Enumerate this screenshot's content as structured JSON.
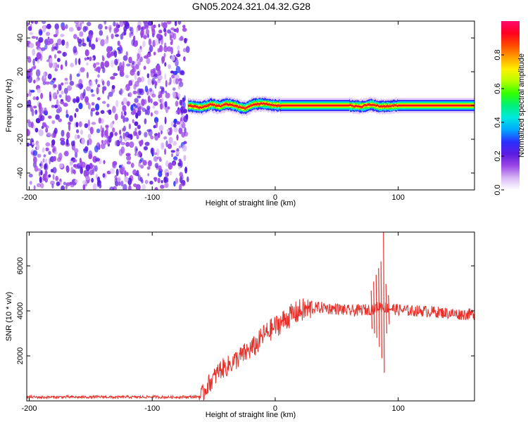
{
  "figure": {
    "title": "GN05.2024.321.04.32.G28"
  },
  "chart_data": [
    {
      "type": "heatmap",
      "xlabel": "Height of straight line (km)",
      "ylabel": "Frequency (Hz)",
      "xlim": [
        -202,
        162
      ],
      "ylim": [
        -50,
        50
      ],
      "x_ticks": [
        -200,
        -100,
        0,
        100
      ],
      "y_ticks": [
        -40,
        -20,
        0,
        20,
        40
      ],
      "colorbar": {
        "label": "Normalized spectral amplitude",
        "range": [
          0,
          1
        ],
        "ticks": [
          0.0,
          0.2,
          0.4,
          0.6,
          0.8
        ],
        "colors": [
          "#ffffff",
          "#d7b8f5",
          "#9b46e6",
          "#5a1be0",
          "#2a30ff",
          "#00a8ff",
          "#00e8e0",
          "#00f07a",
          "#30ff00",
          "#b4ff00",
          "#fff000",
          "#ffa000",
          "#ff4800",
          "#ff0020",
          "#ff0a6e"
        ]
      },
      "regions": [
        {
          "x_range": [
            -202,
            -71
          ],
          "pattern": "noise",
          "density": 0.7
        },
        {
          "x_range": [
            -71,
            162
          ],
          "pattern": "line",
          "center_hz": 0,
          "width_hz": 1.5
        }
      ],
      "line_profile": [
        {
          "x": -71,
          "offset": 0
        },
        {
          "x": -60,
          "offset": -2
        },
        {
          "x": -52,
          "offset": 1
        },
        {
          "x": -45,
          "offset": -1
        },
        {
          "x": -40,
          "offset": 1.5
        },
        {
          "x": -33,
          "offset": 0
        },
        {
          "x": -25,
          "offset": -3
        },
        {
          "x": -18,
          "offset": 1
        },
        {
          "x": -10,
          "offset": 2
        },
        {
          "x": -5,
          "offset": 1
        },
        {
          "x": 0,
          "offset": 0
        },
        {
          "x": 60,
          "offset": 0
        },
        {
          "x": 70,
          "offset": -1
        },
        {
          "x": 78,
          "offset": 1
        },
        {
          "x": 85,
          "offset": -1
        },
        {
          "x": 95,
          "offset": -0.5
        },
        {
          "x": 100,
          "offset": 0
        },
        {
          "x": 162,
          "offset": 0
        }
      ]
    },
    {
      "type": "line",
      "xlabel": "Height of straight line (km)",
      "ylabel": "SNR (10 * v/v)",
      "xlim": [
        -202,
        162
      ],
      "ylim": [
        0,
        7500
      ],
      "x_ticks": [
        -200,
        -100,
        0,
        100
      ],
      "y_ticks": [
        2000,
        4000,
        6000
      ],
      "series": [
        {
          "color": "#e8302a",
          "x": [
            -202,
            -190,
            -180,
            -170,
            -160,
            -150,
            -140,
            -130,
            -120,
            -110,
            -100,
            -90,
            -80,
            -70,
            -60,
            -55,
            -50,
            -45,
            -40,
            -35,
            -30,
            -25,
            -20,
            -15,
            -10,
            -5,
            0,
            5,
            10,
            15,
            20,
            25,
            30,
            35,
            40,
            45,
            50,
            55,
            60,
            65,
            70,
            75,
            80,
            85,
            90,
            95,
            100,
            110,
            120,
            130,
            140,
            150,
            162
          ],
          "y": [
            180,
            160,
            170,
            175,
            165,
            170,
            180,
            160,
            175,
            170,
            180,
            165,
            170,
            175,
            200,
            700,
            1000,
            1400,
            1500,
            1700,
            1900,
            2100,
            2300,
            2500,
            2900,
            3100,
            3300,
            3500,
            3700,
            3850,
            4000,
            4050,
            4100,
            4150,
            4150,
            4100,
            4100,
            4050,
            4000,
            4000,
            4050,
            4050,
            4100,
            4200,
            4150,
            4100,
            4050,
            4000,
            4000,
            3950,
            3900,
            3850,
            3850
          ]
        }
      ],
      "spikes": [
        {
          "x": 78,
          "y_hi": 4900,
          "y_lo": 3200
        },
        {
          "x": 80,
          "y_hi": 5300,
          "y_lo": 3000
        },
        {
          "x": 82,
          "y_hi": 5600,
          "y_lo": 2800
        },
        {
          "x": 84,
          "y_hi": 5900,
          "y_lo": 2400
        },
        {
          "x": 86,
          "y_hi": 6200,
          "y_lo": 1900
        },
        {
          "x": 88,
          "y_hi": 7500,
          "y_lo": 1250
        },
        {
          "x": 90,
          "y_hi": 5200,
          "y_lo": 3000
        },
        {
          "x": 92,
          "y_hi": 4700,
          "y_lo": 3400
        }
      ]
    }
  ]
}
